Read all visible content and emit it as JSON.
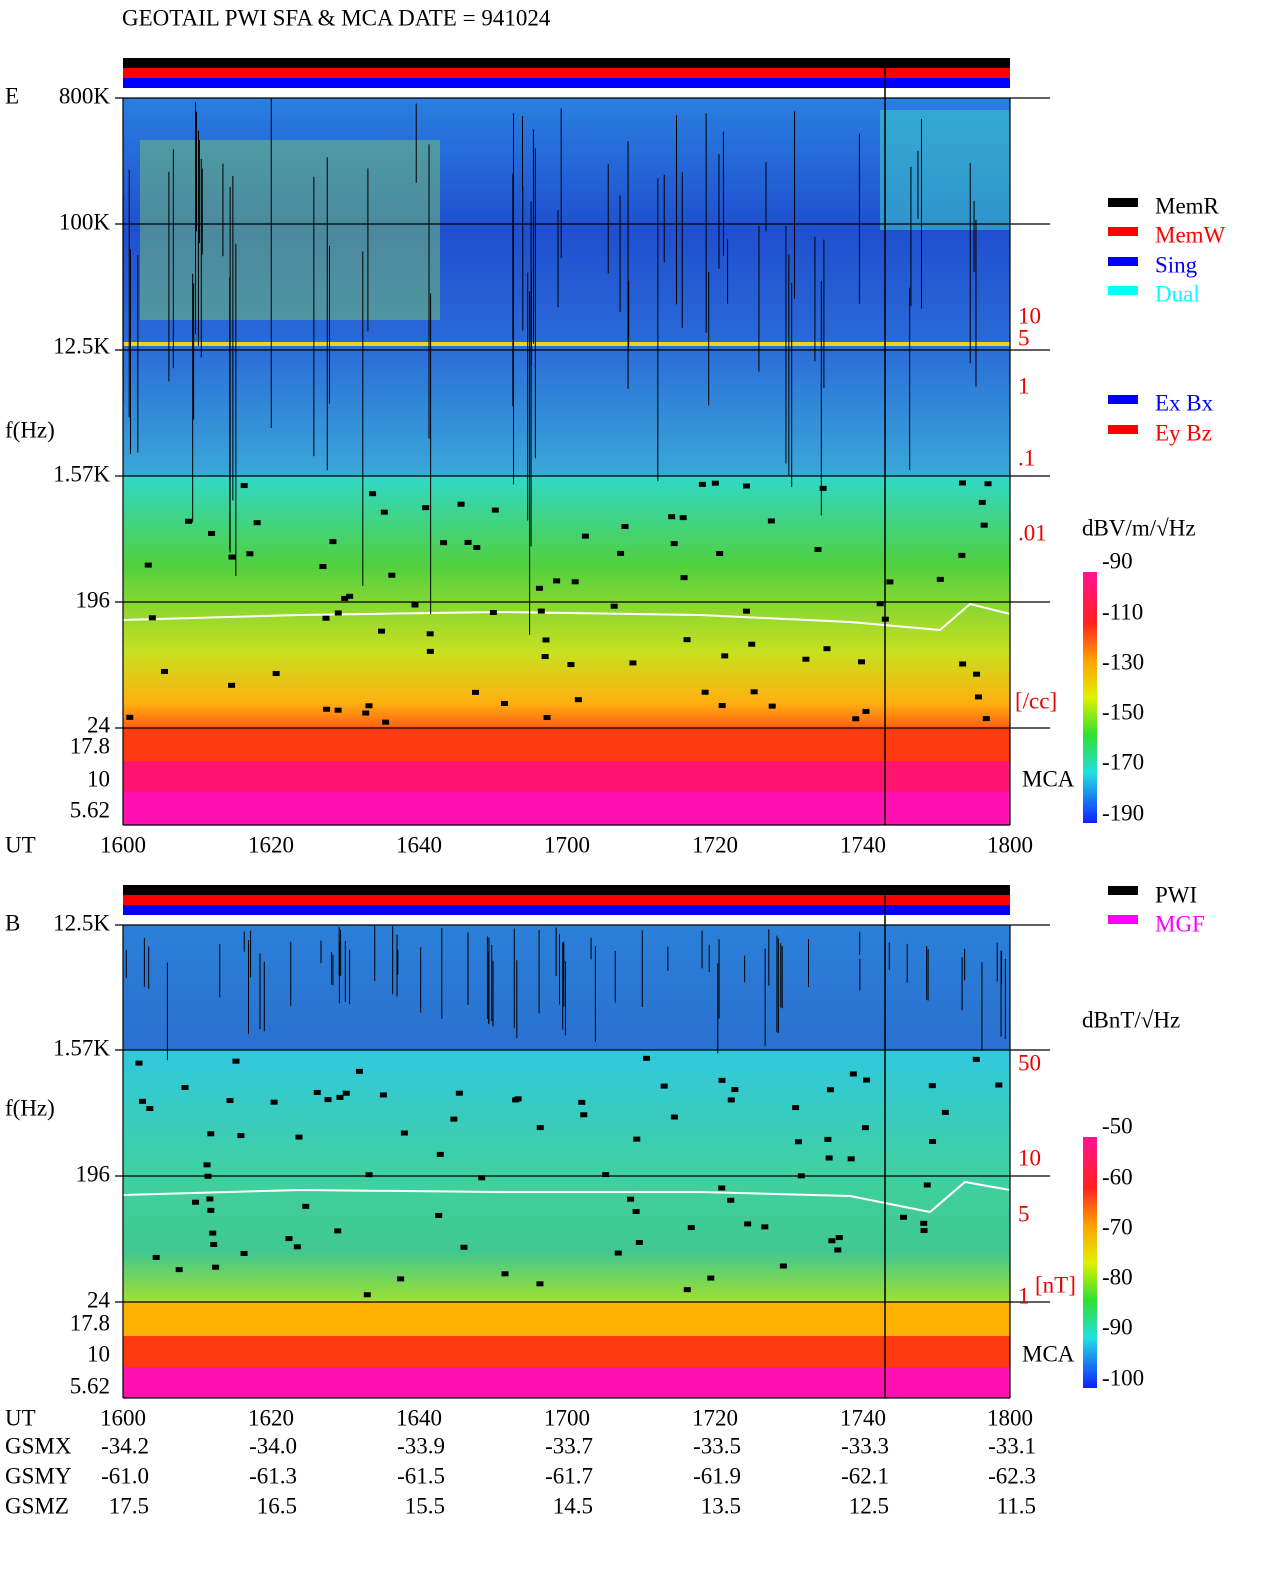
{
  "title": "GEOTAIL  PWI SFA & MCA   DATE = 941024",
  "panel_e": {
    "label": "E",
    "freq_labels": [
      "800K",
      "100K",
      "12.5K",
      "1.57K",
      "196",
      "24",
      "17.8",
      "10",
      "5.62"
    ],
    "axis_label": "f(Hz)",
    "density_labels": [
      "10",
      "5",
      "1",
      ".1",
      ".01"
    ],
    "density_unit": "[/cc]",
    "mca": "MCA",
    "ut_label": "UT",
    "ut_ticks": [
      "1600",
      "1620",
      "1640",
      "1700",
      "1720",
      "1740",
      "1800"
    ],
    "colorbar_title": "dBV/m/√Hz",
    "colorbar_labels": [
      "-90",
      "-110",
      "-130",
      "-150",
      "-170",
      "-190"
    ]
  },
  "legend": {
    "modes": [
      "MemR",
      "MemW",
      "Sing",
      "Dual"
    ],
    "components": [
      "Ex Bx",
      "Ey Bz"
    ],
    "sources": [
      "PWI",
      "MGF"
    ]
  },
  "panel_b": {
    "label": "B",
    "freq_labels": [
      "12.5K",
      "1.57K",
      "196",
      "24",
      "17.8",
      "10",
      "5.62"
    ],
    "axis_label": "f(Hz)",
    "field_labels": [
      "50",
      "10",
      "5",
      "1"
    ],
    "field_unit": "[nT]",
    "mca": "MCA",
    "colorbar_title": "dBnT/√Hz",
    "colorbar_labels": [
      "-50",
      "-60",
      "-70",
      "-80",
      "-90",
      "-100"
    ]
  },
  "orbit": {
    "ut_label": "UT",
    "ut_ticks": [
      "1600",
      "1620",
      "1640",
      "1700",
      "1720",
      "1740",
      "1800"
    ],
    "rows": [
      {
        "name": "GSMX",
        "values": [
          "-34.2",
          "-34.0",
          "-33.9",
          "-33.7",
          "-33.5",
          "-33.3",
          "-33.1"
        ]
      },
      {
        "name": "GSMY",
        "values": [
          "-61.0",
          "-61.3",
          "-61.5",
          "-61.7",
          "-61.9",
          "-62.1",
          "-62.3"
        ]
      },
      {
        "name": "GSMZ",
        "values": [
          "17.5",
          "16.5",
          "15.5",
          "14.5",
          "13.5",
          "12.5",
          "11.5"
        ]
      }
    ]
  }
}
